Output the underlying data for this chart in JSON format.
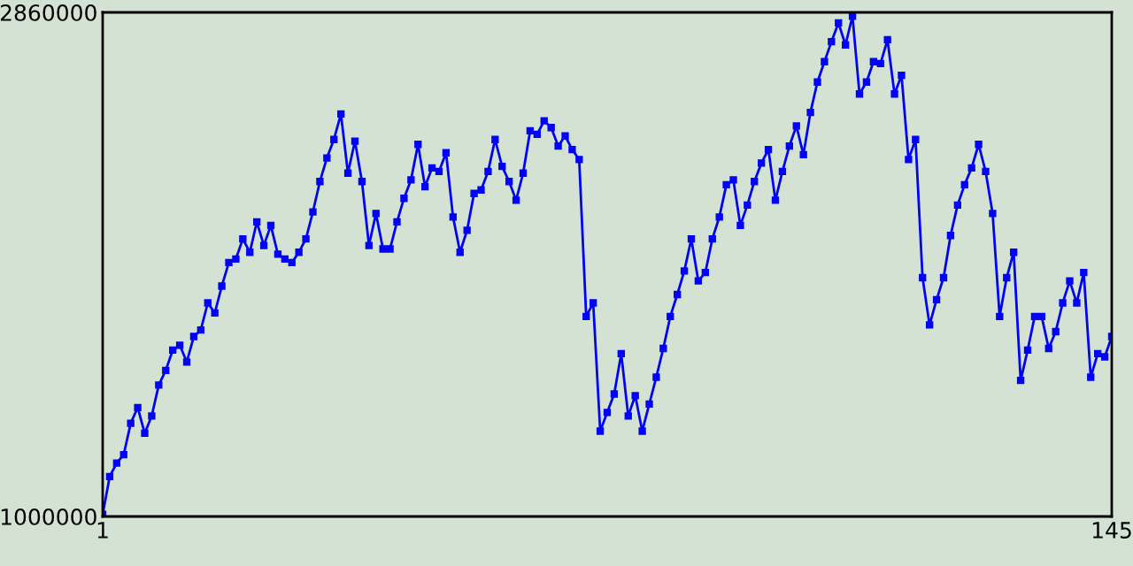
{
  "chart_data": {
    "type": "line",
    "x": [
      1,
      2,
      3,
      4,
      5,
      6,
      7,
      8,
      9,
      10,
      11,
      12,
      13,
      14,
      15,
      16,
      17,
      18,
      19,
      20,
      21,
      22,
      23,
      24,
      25,
      26,
      27,
      28,
      29,
      30,
      31,
      32,
      33,
      34,
      35,
      36,
      37,
      38,
      39,
      40,
      41,
      42,
      43,
      44,
      45,
      46,
      47,
      48,
      49,
      50,
      51,
      52,
      53,
      54,
      55,
      56,
      57,
      58,
      59,
      60,
      61,
      62,
      63,
      64,
      65,
      66,
      67,
      68,
      69,
      70,
      71,
      72,
      73,
      74,
      75,
      76,
      77,
      78,
      79,
      80,
      81,
      82,
      83,
      84,
      85,
      86,
      87,
      88,
      89,
      90,
      91,
      92,
      93,
      94,
      95,
      96,
      97,
      98,
      99,
      100,
      101,
      102,
      103,
      104,
      105,
      106,
      107,
      108,
      109,
      110,
      111,
      112,
      113,
      114,
      115,
      116,
      117,
      118,
      119,
      120,
      121,
      122,
      123,
      124,
      125,
      126,
      127,
      128,
      129,
      130,
      131,
      132,
      133,
      134,
      135,
      136,
      137,
      138,
      139,
      140,
      141,
      142,
      143,
      144,
      145
    ],
    "series": [
      {
        "color": "#0000ff",
        "values": [
          1008000,
          1147000,
          1197000,
          1228000,
          1344000,
          1402000,
          1307000,
          1371000,
          1485000,
          1539000,
          1614000,
          1632000,
          1570000,
          1664000,
          1688000,
          1788000,
          1751000,
          1850000,
          1937000,
          1950000,
          2024000,
          1975000,
          2087000,
          2000000,
          2074000,
          1968000,
          1950000,
          1937000,
          1975000,
          2024000,
          2124000,
          2236000,
          2323000,
          2391000,
          2485000,
          2267000,
          2385000,
          2236000,
          2000000,
          2118000,
          1987000,
          1987000,
          2087000,
          2174000,
          2242000,
          2373000,
          2217000,
          2286000,
          2273000,
          2342000,
          2105000,
          1975000,
          2056000,
          2192000,
          2205000,
          2273000,
          2391000,
          2292000,
          2236000,
          2167000,
          2267000,
          2423000,
          2410000,
          2460000,
          2435000,
          2367000,
          2404000,
          2354000,
          2317000,
          1738000,
          1788000,
          1315000,
          1384000,
          1452000,
          1601000,
          1371000,
          1446000,
          1315000,
          1415000,
          1514000,
          1620000,
          1738000,
          1819000,
          1906000,
          2024000,
          1869000,
          1900000,
          2024000,
          2105000,
          2224000,
          2242000,
          2074000,
          2149000,
          2236000,
          2304000,
          2354000,
          2167000,
          2273000,
          2367000,
          2441000,
          2335000,
          2491000,
          2603000,
          2678000,
          2752000,
          2821000,
          2740000,
          2846000,
          2559000,
          2603000,
          2678000,
          2671000,
          2759000,
          2559000,
          2628000,
          2317000,
          2391000,
          1881000,
          1707000,
          1800000,
          1881000,
          2037000,
          2149000,
          2224000,
          2286000,
          2373000,
          2273000,
          2118000,
          1738000,
          1881000,
          1975000,
          1502000,
          1614000,
          1738000,
          1738000,
          1620000,
          1682000,
          1788000,
          1869000,
          1788000,
          1900000,
          1514000,
          1601000,
          1589000,
          1664000
        ]
      }
    ],
    "xlim": [
      1,
      145
    ],
    "ylim": [
      1000000,
      2860000
    ],
    "xticks": [
      1,
      145
    ],
    "yticks": [
      1000000,
      2860000
    ],
    "marker": "square",
    "line_style": "solid",
    "legend": false
  }
}
